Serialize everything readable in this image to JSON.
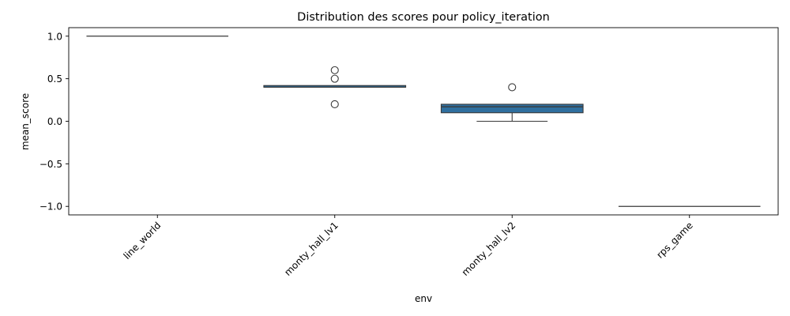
{
  "chart_data": {
    "type": "box",
    "title": "Distribution des scores pour policy_iteration",
    "xlabel": "env",
    "ylabel": "mean_score",
    "ylim": [
      -1.1,
      1.1
    ],
    "yticks": [
      "1.0",
      "0.5",
      "0.0",
      "−0.5",
      "−1.0"
    ],
    "ytick_values": [
      1.0,
      0.5,
      0.0,
      -0.5,
      -1.0
    ],
    "grid": false,
    "legend": "none",
    "box_color": "#2f6f9f",
    "categories": [
      "line_world",
      "monty_hall_lv1",
      "monty_hall_lv2",
      "rps_game"
    ],
    "boxes": [
      {
        "whisker_low": 1.0,
        "q1": 1.0,
        "median": 1.0,
        "q3": 1.0,
        "whisker_high": 1.0,
        "outliers": []
      },
      {
        "whisker_low": 0.4,
        "q1": 0.4,
        "median": 0.4,
        "q3": 0.42,
        "whisker_high": 0.42,
        "outliers": [
          0.6,
          0.5,
          0.2
        ]
      },
      {
        "whisker_low": 0.0,
        "q1": 0.1,
        "median": 0.17,
        "q3": 0.2,
        "whisker_high": 0.2,
        "outliers": [
          0.4
        ]
      },
      {
        "whisker_low": -1.0,
        "q1": -1.0,
        "median": -1.0,
        "q3": -1.0,
        "whisker_high": -1.0,
        "outliers": []
      }
    ]
  }
}
